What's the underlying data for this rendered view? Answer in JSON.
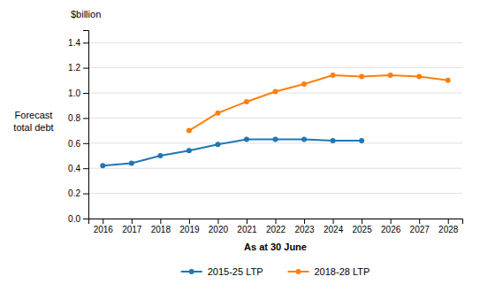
{
  "chart_data": {
    "type": "line",
    "xlabel": "As at 30 June",
    "ylabel": "Forecast\ntotal debt",
    "annotations": [
      "$billion"
    ],
    "series": [
      {
        "name": "2015-25 LTP",
        "marker": "circle",
        "line_style": "solid",
        "x": [
          2016,
          2017,
          2018,
          2019,
          2020,
          2021,
          2022,
          2023,
          2024,
          2025
        ],
        "values": [
          0.42,
          0.44,
          0.5,
          0.54,
          0.59,
          0.63,
          0.63,
          0.63,
          0.62,
          0.62
        ]
      },
      {
        "name": "2018-28 LTP",
        "marker": "circle",
        "line_style": "solid",
        "x": [
          2019,
          2020,
          2021,
          2022,
          2023,
          2024,
          2025,
          2026,
          2027,
          2028
        ],
        "values": [
          0.7,
          0.84,
          0.93,
          1.01,
          1.07,
          1.14,
          1.13,
          1.14,
          1.13,
          1.1
        ]
      }
    ],
    "xlim": [
      2015.5,
      2028.5
    ],
    "xticks": [
      2016,
      2017,
      2018,
      2019,
      2020,
      2021,
      2022,
      2023,
      2024,
      2025,
      2026,
      2027,
      2028
    ],
    "ylim": [
      0.0,
      1.5
    ],
    "yticks": [
      {
        "value": 0,
        "label": "0.0"
      },
      0.2,
      0.4,
      0.6,
      0.8,
      {
        "value": 1,
        "label": "1.0"
      },
      1.2,
      1.4
    ],
    "grid": true,
    "legend": "bottom"
  }
}
